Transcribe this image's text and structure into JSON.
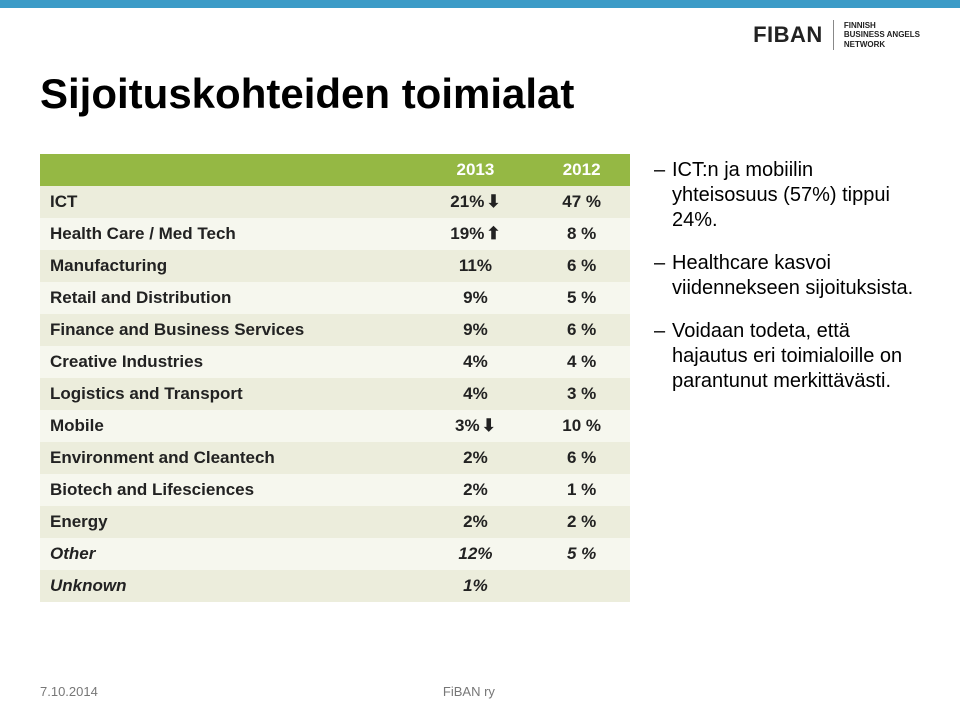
{
  "colors": {
    "top_stripe": "#3c9bc7",
    "header_bg": "#95b844",
    "header_fg": "#ffffff",
    "row_odd": "#eceddc",
    "row_even": "#f6f7ee",
    "text": "#222222",
    "footer": "#777777"
  },
  "logo": {
    "main": "FIBAN",
    "sub1": "FINNISH",
    "sub2": "BUSINESS ANGELS",
    "sub3": "NETWORK"
  },
  "title": "Sijoituskohteiden toimialat",
  "table": {
    "font_size_pt": 17,
    "columns": [
      "",
      "2013",
      "2012"
    ],
    "col_widths_pct": [
      64,
      18,
      18
    ],
    "rows": [
      {
        "label": "ICT",
        "v2013": "21%",
        "arrow": "down",
        "v2012": "47 %"
      },
      {
        "label": "Health Care / Med Tech",
        "v2013": "19%",
        "arrow": "up",
        "v2012": "8 %"
      },
      {
        "label": "Manufacturing",
        "v2013": "11%",
        "arrow": null,
        "v2012": "6 %"
      },
      {
        "label": "Retail and Distribution",
        "v2013": "9%",
        "arrow": null,
        "v2012": "5 %"
      },
      {
        "label": "Finance and Business Services",
        "v2013": "9%",
        "arrow": null,
        "v2012": "6 %"
      },
      {
        "label": "Creative Industries",
        "v2013": "4%",
        "arrow": null,
        "v2012": "4 %"
      },
      {
        "label": "Logistics and Transport",
        "v2013": "4%",
        "arrow": null,
        "v2012": "3 %"
      },
      {
        "label": "Mobile",
        "v2013": "3%",
        "arrow": "down",
        "v2012": "10 %"
      },
      {
        "label": "Environment and Cleantech",
        "v2013": "2%",
        "arrow": null,
        "v2012": "6 %"
      },
      {
        "label": "Biotech and Lifesciences",
        "v2013": "2%",
        "arrow": null,
        "v2012": "1 %"
      },
      {
        "label": "Energy",
        "v2013": "2%",
        "arrow": null,
        "v2012": "2 %"
      },
      {
        "label": "Other",
        "v2013": "12%",
        "arrow": null,
        "v2012": "5 %",
        "italic": true
      },
      {
        "label": "Unknown",
        "v2013": "1%",
        "arrow": null,
        "v2012": "",
        "italic": true
      }
    ],
    "arrow_glyphs": {
      "up": "⬆",
      "down": "⬇"
    }
  },
  "notes": [
    "ICT:n ja mobiilin yhteisosuus (57%) tippui 24%.",
    "Healthcare kasvoi viidennekseen sijoituksista.",
    "Voidaan todeta, että hajautus eri toimialoille on parantunut merkittävästi."
  ],
  "footer": {
    "date": "7.10.2014",
    "org": "FiBAN ry"
  }
}
